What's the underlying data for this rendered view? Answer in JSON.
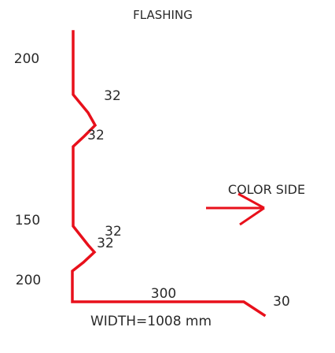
{
  "diagram": {
    "title": "FLASHING",
    "dimensions": {
      "top_vertical": "200",
      "first_bend_upper": "32",
      "first_bend_lower": "32",
      "middle_vertical": "150",
      "second_bend_upper": "32",
      "second_bend_lower": "32",
      "bottom_vertical": "200",
      "bottom_horizontal": "300",
      "end_return": "30"
    },
    "color_side_label": "COLOR SIDE",
    "width_label": "WIDTH=1008 mm",
    "colors": {
      "profile_line": "#e8101b",
      "text": "#2a2a2a"
    },
    "icons": [
      "arrow-right-icon"
    ]
  }
}
